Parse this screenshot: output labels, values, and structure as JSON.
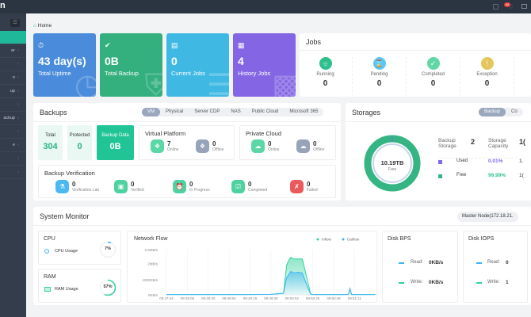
{
  "topbar": {
    "logo_fragment": "n",
    "badge": "66"
  },
  "sidebar": {
    "items": [
      "",
      "er",
      "",
      "n",
      "up",
      "",
      "ackup",
      "",
      "e",
      "",
      ""
    ]
  },
  "breadcrumb": "Home",
  "cards": [
    {
      "value": "43 day(s)",
      "label": "Total Uptime",
      "color": "#4a8cdb"
    },
    {
      "value": "0B",
      "label": "Total Backup",
      "color": "#34b07e"
    },
    {
      "value": "0",
      "label": "Current Jobs",
      "color": "#3fb9e4"
    },
    {
      "value": "4",
      "label": "History Jobs",
      "color": "#8466e4"
    }
  ],
  "jobs": {
    "title": "Jobs",
    "items": [
      {
        "label": "Running",
        "value": "0",
        "color": "#2dc08d"
      },
      {
        "label": "Pending",
        "value": "0",
        "color": "#5cc7f5"
      },
      {
        "label": "Completed",
        "value": "0",
        "color": "#5fd8a5"
      },
      {
        "label": "Exception",
        "value": "0",
        "color": "#e6c55a"
      }
    ]
  },
  "backups": {
    "title": "Backups",
    "tabs": [
      "VM",
      "Physical",
      "Server CDP",
      "NAS",
      "Public Cloud",
      "Microsoft 365"
    ],
    "total_label": "Total",
    "total": "304",
    "protected_label": "Protected",
    "protected": "0",
    "data_label": "Backup Data",
    "data": "0B",
    "virtual": {
      "title": "Virtual Platform",
      "online": "7",
      "offline": "0",
      "online_label": "Online",
      "offline_label": "Offline"
    },
    "private": {
      "title": "Private Cloud",
      "online": "0",
      "offline": "0",
      "online_label": "Online",
      "offline_label": "Offline"
    },
    "verification": {
      "title": "Backup Verification",
      "items": [
        {
          "value": "0",
          "label": "Verification Lab",
          "color": "#4cb8f0"
        },
        {
          "value": "0",
          "label": "Verified",
          "color": "#4fd1a0"
        },
        {
          "value": "0",
          "label": "In Progress",
          "color": "#4fd1a0"
        },
        {
          "value": "0",
          "label": "Completed",
          "color": "#4fd1a0"
        },
        {
          "value": "0",
          "label": "Failed",
          "color": "#ea5a5a"
        }
      ]
    }
  },
  "storages": {
    "title": "Storages",
    "tabs": [
      "Backup",
      "Co"
    ],
    "center_value": "10.19TB",
    "center_label": "Free",
    "backup_storage_label": "Backup Storage",
    "backup_storage": "2",
    "capacity_label": "Storage Capacity",
    "capacity_fragment": "1(",
    "used_label": "Used",
    "used_pct": "0.01%",
    "used_frag": "1.",
    "free_label": "Free",
    "free_pct": "99.99%",
    "free_frag": "1(",
    "used_color": "#7b6cf0",
    "free_color": "#34b583"
  },
  "monitor": {
    "title": "System Monitor",
    "node": "Master Node(172.18.21.",
    "cpu": {
      "title": "CPU",
      "label": "CPU Usage",
      "value": "7%",
      "pct": 7
    },
    "ram": {
      "title": "RAM",
      "label": "RAM Usage",
      "value": "57%",
      "pct": 57
    },
    "disk_bps": {
      "title": "Disk BPS",
      "read_label": "Read:",
      "read": "0KB/s",
      "write_label": "Write:",
      "write": "0KB/s"
    },
    "disk_iops": {
      "title": "Disk IOPS",
      "read_label": "Read:",
      "read": "0",
      "write_label": "Write:",
      "write": "1"
    }
  },
  "chart_data": {
    "type": "area",
    "title": "Network Flow",
    "yticks": [
      "0KB/s",
      "1000KB/s",
      "2MB/s",
      "2.9MB/s"
    ],
    "ylim": [
      0,
      2.9
    ],
    "yunit": "MB/s",
    "categories": [
      "09:47:44",
      "09:48:06",
      "09:48:30",
      "09:48:52",
      "09:49:15",
      "09:49:38",
      "09:50:02",
      "09:50:25",
      "09:50:48",
      "09:51:11"
    ],
    "x": [
      0,
      1,
      2,
      3,
      4,
      5,
      5.6,
      5.75,
      5.85,
      5.95,
      6.1,
      6.3,
      6.5,
      6.75,
      6.9,
      7,
      8,
      8.7,
      8.78,
      8.86,
      9,
      10
    ],
    "series": [
      {
        "name": "Inflow",
        "color": "#2fd39a",
        "values": [
          0.02,
          0.02,
          0.02,
          0.02,
          0.02,
          0.03,
          0.1,
          1.9,
          2.2,
          2.4,
          2.3,
          2.3,
          2.3,
          0.9,
          0.05,
          0.02,
          0.02,
          0.02,
          0.4,
          0.02,
          0.02,
          0.02
        ]
      },
      {
        "name": "Outflow",
        "color": "#3cb4f5",
        "values": [
          0.02,
          0.02,
          0.02,
          0.02,
          0.02,
          0.03,
          0.1,
          1.1,
          1.3,
          1.5,
          1.4,
          1.45,
          1.4,
          0.5,
          0.05,
          0.02,
          0.02,
          0.02,
          0.4,
          0.02,
          0.02,
          0.02
        ]
      }
    ]
  }
}
